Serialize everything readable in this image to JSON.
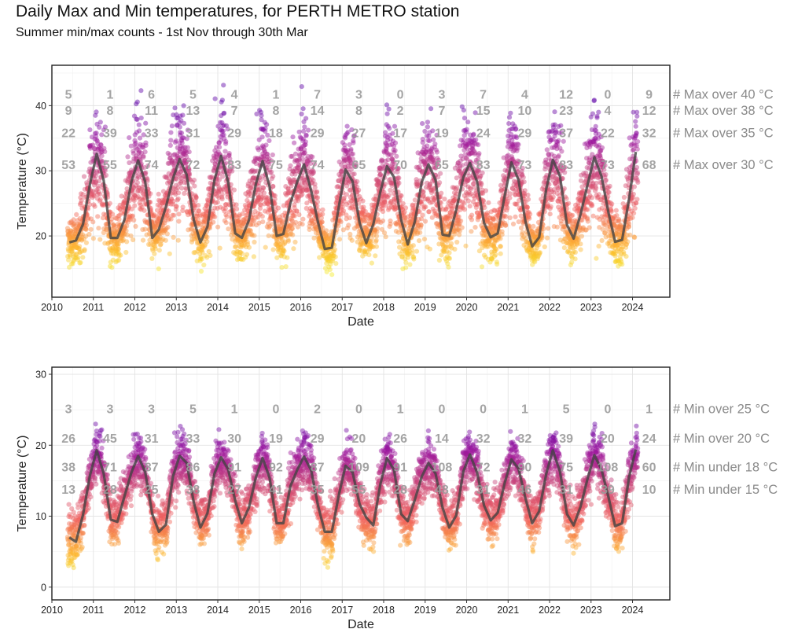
{
  "title": "Daily Max and Min temperatures, for PERTH METRO station",
  "subtitle": "Summer min/max counts - 1st Nov through 30th Mar",
  "chart_data": [
    {
      "type": "scatter",
      "id": "max",
      "xlabel": "Date",
      "ylabel": "Temperature (°C)",
      "xlim": [
        2010.0,
        2024.9
      ],
      "ylim": [
        10.6,
        46.2
      ],
      "xticks": [
        2010,
        2011,
        2012,
        2013,
        2014,
        2015,
        2016,
        2017,
        2018,
        2019,
        2020,
        2021,
        2022,
        2023,
        2024
      ],
      "yticks": [
        20,
        30,
        40
      ],
      "grid": true,
      "color_scale": [
        "#f0f921",
        "#fdb32f",
        "#f0605d",
        "#cc4778",
        "#9c179e",
        "#5d01a6"
      ],
      "seasonal_curve": {
        "x": [
          2010.42,
          2010.58,
          2010.75,
          2010.92,
          2011.08,
          2011.25,
          2011.42,
          2011.58,
          2011.75,
          2011.92,
          2012.08,
          2012.25,
          2012.42,
          2012.58,
          2012.75,
          2012.92,
          2013.08,
          2013.25,
          2013.42,
          2013.58,
          2013.75,
          2013.92,
          2014.08,
          2014.25,
          2014.42,
          2014.58,
          2014.75,
          2014.92,
          2015.08,
          2015.25,
          2015.42,
          2015.58,
          2015.75,
          2015.92,
          2016.08,
          2016.25,
          2016.42,
          2016.58,
          2016.75,
          2016.92,
          2017.08,
          2017.25,
          2017.42,
          2017.58,
          2017.75,
          2017.92,
          2018.08,
          2018.25,
          2018.42,
          2018.58,
          2018.75,
          2018.92,
          2019.08,
          2019.25,
          2019.42,
          2019.58,
          2019.75,
          2019.92,
          2020.08,
          2020.25,
          2020.42,
          2020.58,
          2020.75,
          2020.92,
          2021.08,
          2021.25,
          2021.42,
          2021.58,
          2021.75,
          2021.92,
          2022.08,
          2022.25,
          2022.42,
          2022.58,
          2022.75,
          2022.92,
          2023.08,
          2023.25,
          2023.42,
          2023.58,
          2023.75,
          2023.92,
          2024.08
        ],
        "y": [
          19.0,
          19.3,
          21.8,
          28.0,
          32.6,
          28.5,
          19.7,
          19.7,
          22.5,
          28.4,
          31.6,
          28.3,
          19.7,
          21.0,
          24.5,
          28.8,
          31.8,
          29.4,
          22.5,
          19.0,
          21.4,
          28.6,
          32.3,
          28.3,
          20.4,
          19.7,
          22.4,
          28.0,
          31.5,
          27.6,
          20.0,
          20.3,
          25.0,
          28.4,
          31.0,
          27.0,
          22.0,
          18.0,
          18.2,
          24.5,
          30.2,
          28.4,
          22.0,
          18.9,
          21.8,
          26.8,
          30.7,
          29.0,
          22.5,
          18.7,
          22.2,
          28.3,
          31.0,
          28.6,
          20.2,
          20.0,
          24.0,
          29.0,
          31.2,
          28.4,
          22.0,
          19.8,
          20.4,
          26.2,
          31.3,
          28.6,
          22.2,
          18.4,
          19.8,
          27.2,
          31.7,
          29.2,
          21.7,
          19.6,
          23.4,
          28.0,
          32.1,
          29.2,
          23.6,
          19.1,
          19.4,
          25.8,
          32.9
        ]
      },
      "annotation_columns": [
        2010.4,
        2011.4,
        2012.4,
        2013.4,
        2014.4,
        2015.4,
        2016.4,
        2017.4,
        2018.4,
        2019.4,
        2020.4,
        2021.4,
        2022.4,
        2023.4,
        2024.4
      ],
      "count_rows": [
        {
          "label": "# Max over 40 °C",
          "y": 41.8,
          "counts": [
            "5",
            "1",
            "6",
            "5",
            "4",
            "1",
            "7",
            "3",
            "0",
            "3",
            "7",
            "4",
            "12",
            "0",
            "9"
          ]
        },
        {
          "label": "# Max over 38 °C",
          "y": 39.3,
          "counts": [
            "9",
            "8",
            "11",
            "13",
            "7",
            "8",
            "14",
            "8",
            "2",
            "7",
            "15",
            "10",
            "23",
            "4",
            "12"
          ]
        },
        {
          "label": "# Max over 35 °C",
          "y": 35.9,
          "counts": [
            "22",
            "39",
            "33",
            "31",
            "29",
            "18",
            "29",
            "27",
            "17",
            "19",
            "24",
            "29",
            "37",
            "22",
            "32"
          ]
        },
        {
          "label": "# Max over 30 °C",
          "y": 31.0,
          "counts": [
            "53",
            "55",
            "74",
            "72",
            "83",
            "75",
            "74",
            "65",
            "70",
            "65",
            "83",
            "73",
            "83",
            "73",
            "68"
          ]
        }
      ]
    },
    {
      "type": "scatter",
      "id": "min",
      "xlabel": "Date",
      "ylabel": "Temperature (°C)",
      "xlim": [
        2010.0,
        2024.9
      ],
      "ylim": [
        -1.8,
        31.0
      ],
      "xticks": [
        2010,
        2011,
        2012,
        2013,
        2014,
        2015,
        2016,
        2017,
        2018,
        2019,
        2020,
        2021,
        2022,
        2023,
        2024
      ],
      "yticks": [
        0,
        10,
        20,
        30
      ],
      "grid": true,
      "color_scale": [
        "#f0f921",
        "#fdb32f",
        "#f0605d",
        "#cc4778",
        "#9c179e",
        "#5d01a6"
      ],
      "seasonal_curve": {
        "x": [
          2010.42,
          2010.58,
          2010.75,
          2010.92,
          2011.08,
          2011.25,
          2011.42,
          2011.58,
          2011.75,
          2011.92,
          2012.08,
          2012.25,
          2012.42,
          2012.58,
          2012.75,
          2012.92,
          2013.08,
          2013.25,
          2013.42,
          2013.58,
          2013.75,
          2013.92,
          2014.08,
          2014.25,
          2014.42,
          2014.58,
          2014.75,
          2014.92,
          2015.08,
          2015.25,
          2015.42,
          2015.58,
          2015.75,
          2015.92,
          2016.08,
          2016.25,
          2016.42,
          2016.58,
          2016.75,
          2016.92,
          2017.08,
          2017.25,
          2017.42,
          2017.58,
          2017.75,
          2017.92,
          2018.08,
          2018.25,
          2018.42,
          2018.58,
          2018.75,
          2018.92,
          2019.08,
          2019.25,
          2019.42,
          2019.58,
          2019.75,
          2019.92,
          2020.08,
          2020.25,
          2020.42,
          2020.58,
          2020.75,
          2020.92,
          2021.08,
          2021.25,
          2021.42,
          2021.58,
          2021.75,
          2021.92,
          2022.08,
          2022.25,
          2022.42,
          2022.58,
          2022.75,
          2022.92,
          2023.08,
          2023.25,
          2023.42,
          2023.58,
          2023.75,
          2023.92,
          2024.08
        ],
        "y": [
          7.0,
          6.4,
          10.2,
          15.8,
          19.3,
          16.0,
          9.5,
          9.2,
          12.8,
          16.2,
          18.5,
          16.2,
          10.3,
          7.8,
          8.8,
          15.6,
          18.5,
          17.5,
          12.0,
          8.4,
          10.4,
          16.0,
          18.3,
          16.6,
          12.2,
          9.0,
          11.2,
          15.5,
          18.2,
          15.4,
          9.0,
          9.0,
          14.2,
          16.6,
          18.4,
          16.5,
          11.4,
          7.8,
          7.8,
          13.0,
          17.1,
          16.2,
          11.7,
          9.8,
          8.7,
          14.5,
          18.2,
          16.5,
          10.3,
          9.3,
          12.3,
          15.6,
          17.5,
          16.0,
          11.2,
          8.4,
          10.1,
          16.3,
          18.7,
          16.2,
          11.5,
          9.4,
          10.5,
          14.7,
          18.0,
          16.7,
          12.5,
          9.0,
          10.7,
          16.0,
          19.3,
          16.3,
          10.3,
          8.7,
          11.4,
          15.4,
          18.6,
          16.6,
          12.7,
          8.6,
          9.0,
          15.6,
          19.4
        ]
      },
      "annotation_columns": [
        2010.4,
        2011.4,
        2012.4,
        2013.4,
        2014.4,
        2015.4,
        2016.4,
        2017.4,
        2018.4,
        2019.4,
        2020.4,
        2021.4,
        2022.4,
        2023.4,
        2024.4
      ],
      "count_rows": [
        {
          "label": "# Min over 25 °C",
          "y": 25.2,
          "counts": [
            "3",
            "3",
            "3",
            "5",
            "1",
            "0",
            "2",
            "0",
            "1",
            "0",
            "0",
            "1",
            "5",
            "0",
            "1"
          ]
        },
        {
          "label": "# Min over 20 °C",
          "y": 21.0,
          "counts": [
            "26",
            "45",
            "31",
            "33",
            "30",
            "19",
            "29",
            "20",
            "26",
            "14",
            "32",
            "32",
            "39",
            "20",
            "24"
          ]
        },
        {
          "label": "# Min under 18 °C",
          "y": 17.0,
          "counts": [
            "38",
            "71",
            "87",
            "86",
            "91",
            "92",
            "87",
            "109",
            "91",
            "108",
            "72",
            "90",
            "75",
            "108",
            "60"
          ]
        },
        {
          "label": "# Min under 15 °C",
          "y": 13.8,
          "counts": [
            "13",
            "28",
            "25",
            "38",
            "27",
            "41",
            "35",
            "55",
            "28",
            "48",
            "31",
            "46",
            "31",
            "39",
            "10"
          ]
        }
      ]
    }
  ]
}
